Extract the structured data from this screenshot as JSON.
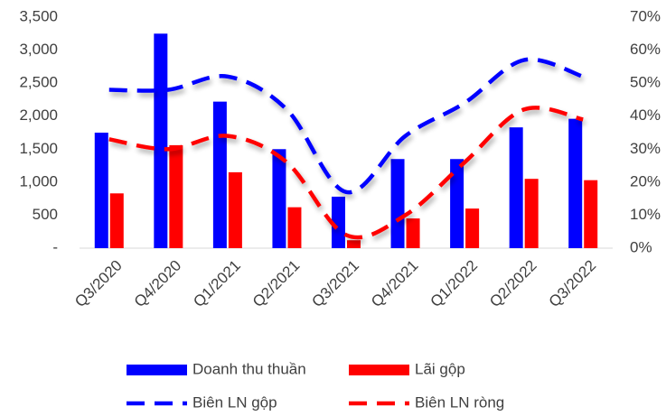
{
  "chart_data": {
    "type": "bar",
    "categories": [
      "Q3/2020",
      "Q4/2020",
      "Q1/2021",
      "Q2/2021",
      "Q3/2021",
      "Q4/2021",
      "Q1/2022",
      "Q2/2022",
      "Q3/2022"
    ],
    "series": [
      {
        "name": "Doanh thu thuần",
        "color": "#0000ff",
        "type": "bar",
        "values": [
          1750,
          3250,
          2220,
          1500,
          780,
          1350,
          1350,
          1830,
          1960
        ]
      },
      {
        "name": "Lãi gộp",
        "color": "#ff0000",
        "type": "bar",
        "values": [
          830,
          1560,
          1150,
          620,
          120,
          450,
          600,
          1050,
          1030
        ]
      },
      {
        "name": "Biên LN gộp",
        "color": "#0000ff",
        "type": "line",
        "line_style": "dashed",
        "axis": "y2",
        "values": [
          48,
          48,
          52,
          42,
          17,
          34,
          44,
          57,
          52
        ]
      },
      {
        "name": "Biên LN ròng",
        "color": "#ff0000",
        "type": "line",
        "line_style": "dashed",
        "axis": "y2",
        "values": [
          33,
          30,
          34,
          26,
          4,
          10,
          26,
          42,
          39
        ]
      }
    ],
    "ylim": [
      0,
      3500
    ],
    "yticks": [
      {
        "value": 0,
        "label": "-"
      },
      500,
      {
        "value": 1000,
        "label": "1,000"
      },
      {
        "value": 1500,
        "label": "1,500"
      },
      {
        "value": 2000,
        "label": "2,000"
      },
      {
        "value": 2500,
        "label": "2,500"
      },
      {
        "value": 3000,
        "label": "3,000"
      },
      {
        "value": 3500,
        "label": "3,500"
      }
    ],
    "y2lim": [
      0,
      70
    ],
    "y2ticks": [
      {
        "value": 0,
        "label": "0%"
      },
      {
        "value": 10,
        "label": "10%"
      },
      {
        "value": 20,
        "label": "20%"
      },
      {
        "value": 30,
        "label": "30%"
      },
      {
        "value": 40,
        "label": "40%"
      },
      {
        "value": 50,
        "label": "50%"
      },
      {
        "value": 60,
        "label": "60%"
      },
      {
        "value": 70,
        "label": "70%"
      }
    ],
    "grid": false
  }
}
